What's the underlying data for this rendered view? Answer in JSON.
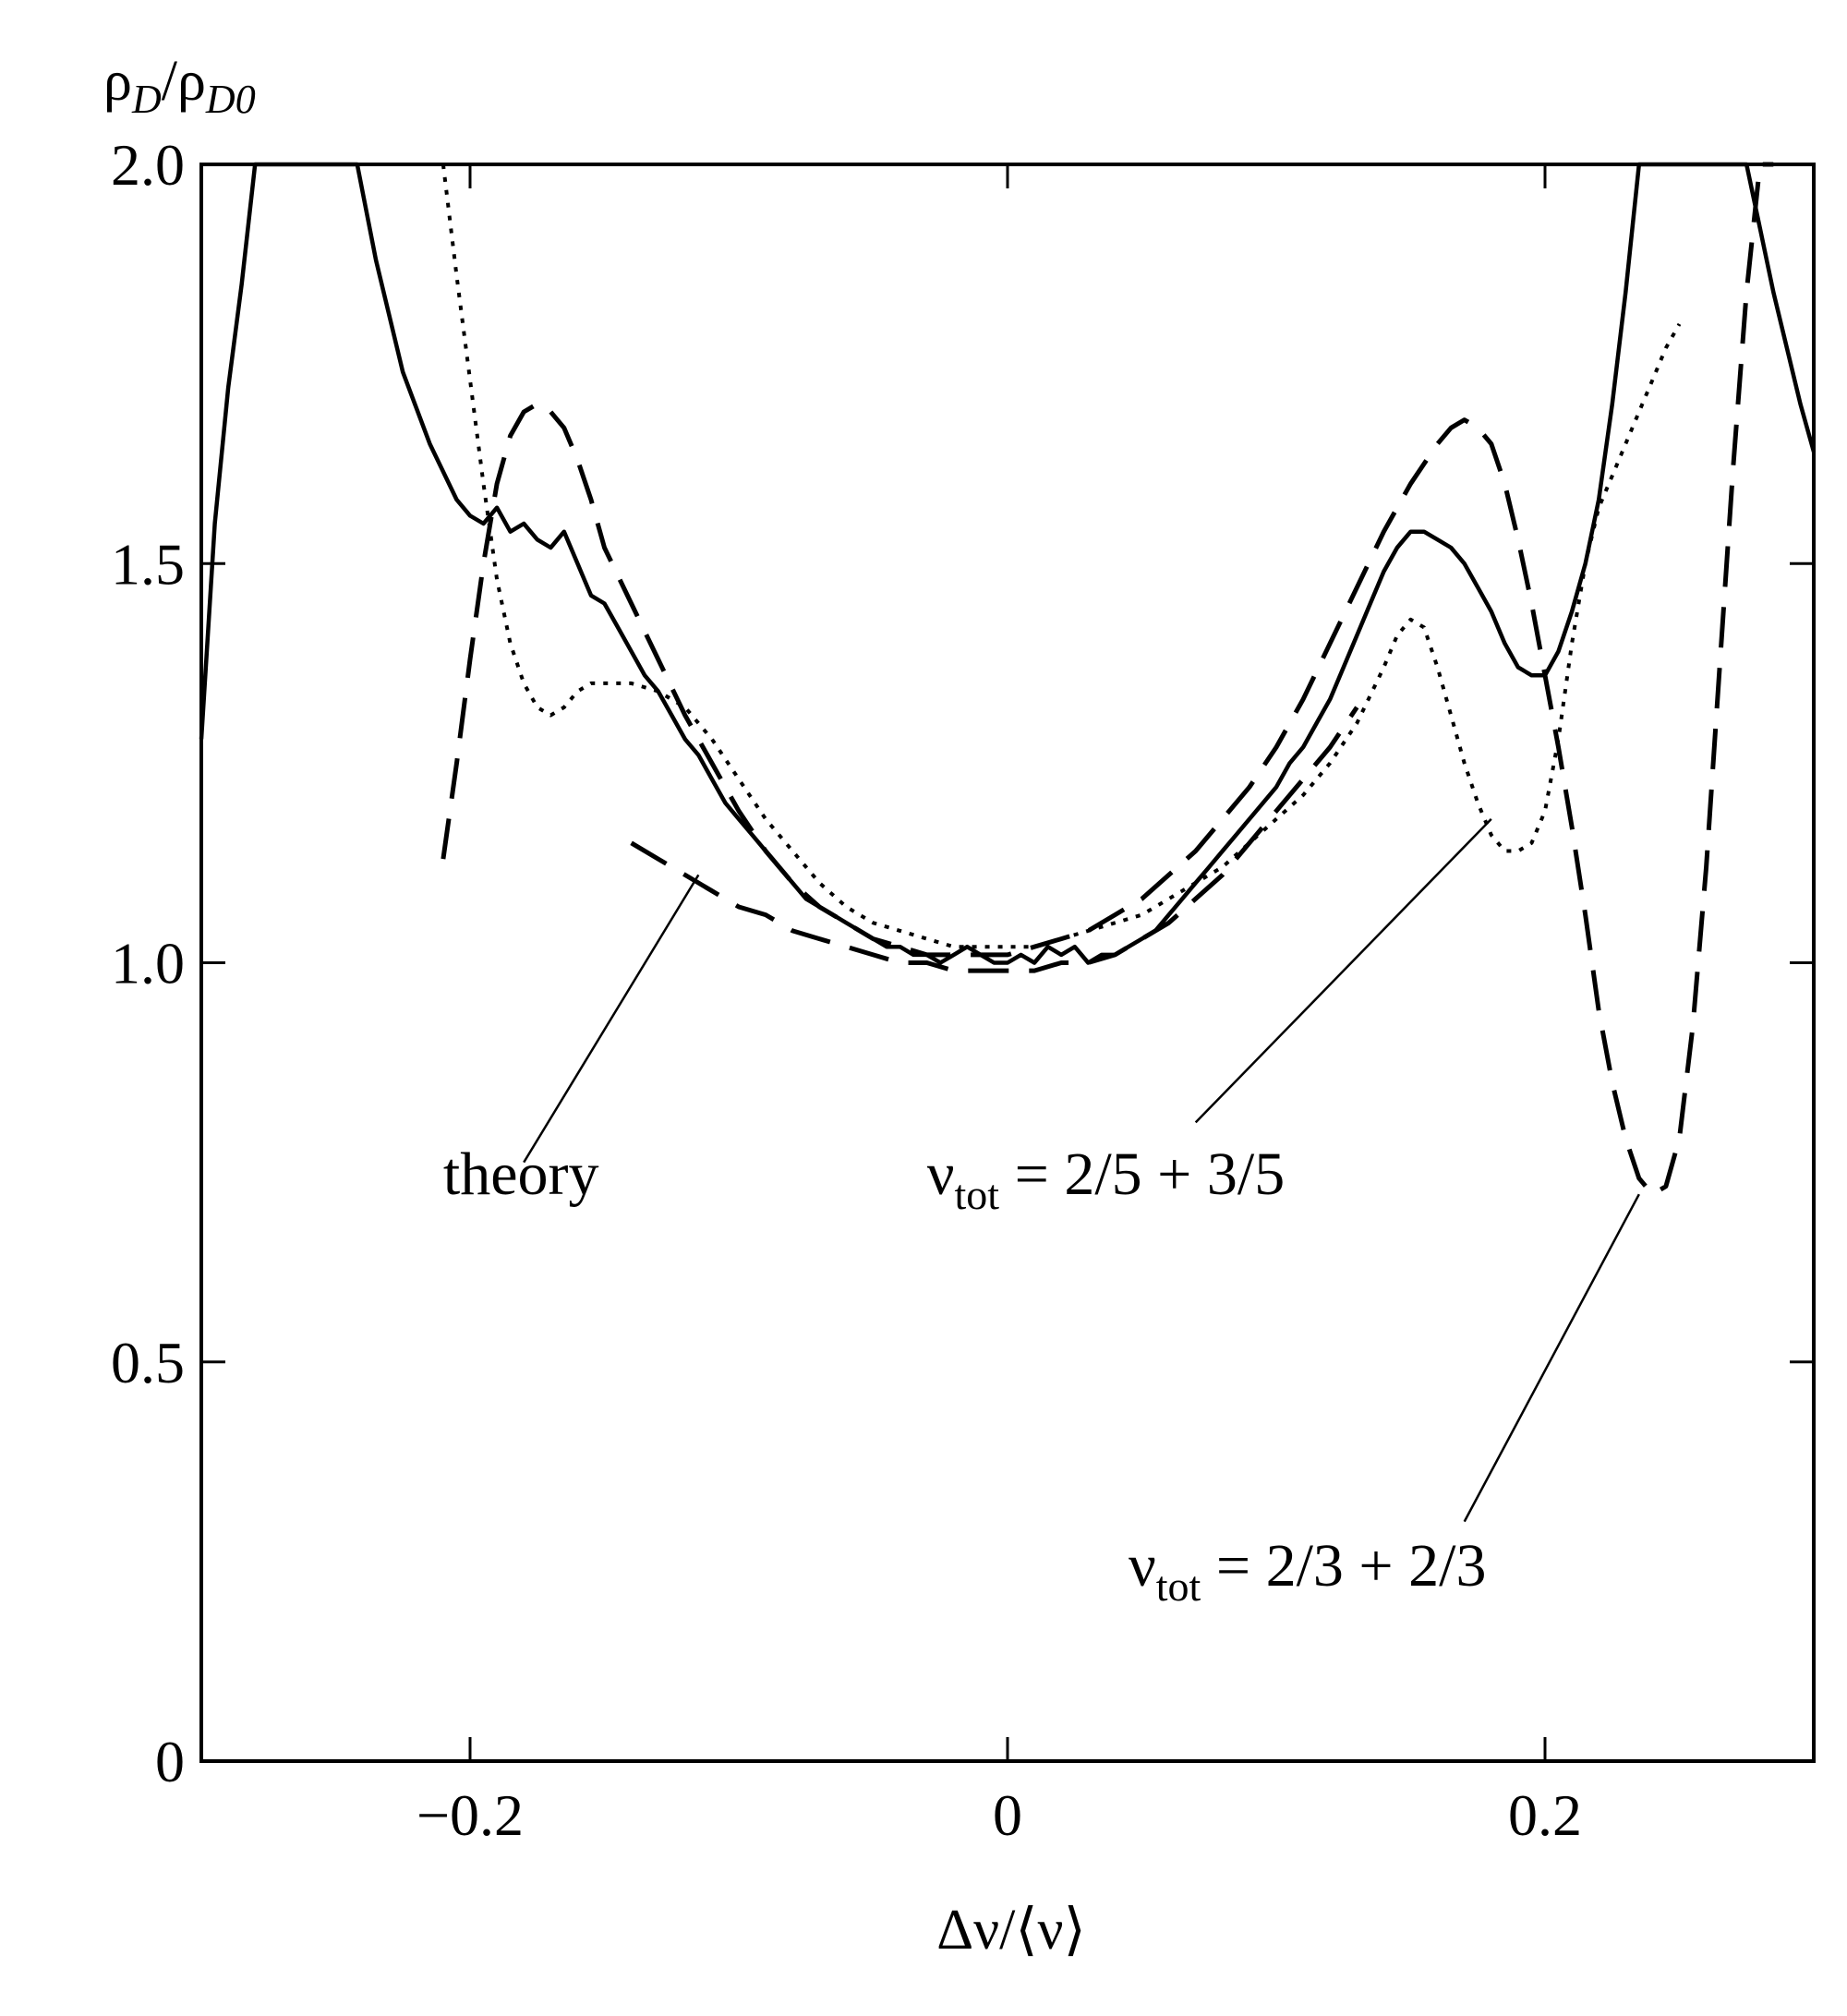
{
  "chart_data": {
    "type": "line",
    "title": "",
    "ylabel": {
      "base": "ρ",
      "sub": "D",
      "sep": "/",
      "base2": "ρ",
      "sub2": "D0"
    },
    "xlabel": "Δν/⟨ν⟩",
    "xlim": [
      -0.3,
      0.3
    ],
    "ylim": [
      0,
      2.0
    ],
    "x_ticks": [
      -0.2,
      0,
      0.2
    ],
    "x_tick_labels": [
      "−0.2",
      "0",
      "0.2"
    ],
    "y_ticks": [
      0,
      0.5,
      1.0,
      1.5,
      2.0
    ],
    "y_tick_labels": [
      "0",
      "0.5",
      "1.0",
      "1.5",
      "2.0"
    ],
    "grid": false,
    "series": [
      {
        "style": "solid",
        "x": [
          -0.3,
          -0.295,
          -0.29,
          -0.285,
          -0.28,
          -0.242,
          -0.235,
          -0.225,
          -0.215,
          -0.205,
          -0.2,
          -0.195,
          -0.19,
          -0.185,
          -0.18,
          -0.175,
          -0.17,
          -0.165,
          -0.16,
          -0.155,
          -0.15,
          -0.145,
          -0.14,
          -0.135,
          -0.13,
          -0.125,
          -0.12,
          -0.115,
          -0.11,
          -0.105,
          -0.1,
          -0.095,
          -0.09,
          -0.085,
          -0.08,
          -0.075,
          -0.07,
          -0.065,
          -0.06,
          -0.055,
          -0.05,
          -0.045,
          -0.04,
          -0.035,
          -0.03,
          -0.025,
          -0.02,
          -0.015,
          -0.01,
          -0.005,
          0.0,
          0.005,
          0.01,
          0.015,
          0.02,
          0.025,
          0.03,
          0.035,
          0.04,
          0.045,
          0.05,
          0.055,
          0.06,
          0.065,
          0.07,
          0.075,
          0.08,
          0.085,
          0.09,
          0.095,
          0.1,
          0.105,
          0.11,
          0.115,
          0.12,
          0.125,
          0.13,
          0.135,
          0.14,
          0.145,
          0.15,
          0.155,
          0.16,
          0.165,
          0.17,
          0.175,
          0.18,
          0.185,
          0.19,
          0.195,
          0.2,
          0.205,
          0.21,
          0.215,
          0.22,
          0.225,
          0.23,
          0.235,
          0.24,
          0.245,
          0.275,
          0.28,
          0.285,
          0.29,
          0.295,
          0.3
        ],
        "y": [
          1.28,
          1.55,
          1.72,
          1.85,
          2.0,
          2.0,
          1.88,
          1.74,
          1.65,
          1.58,
          1.56,
          1.55,
          1.57,
          1.54,
          1.55,
          1.53,
          1.52,
          1.54,
          1.5,
          1.46,
          1.45,
          1.42,
          1.39,
          1.36,
          1.34,
          1.31,
          1.28,
          1.26,
          1.23,
          1.2,
          1.18,
          1.16,
          1.14,
          1.12,
          1.1,
          1.08,
          1.07,
          1.06,
          1.05,
          1.04,
          1.03,
          1.02,
          1.02,
          1.01,
          1.01,
          1.0,
          1.01,
          1.02,
          1.01,
          1.0,
          1.0,
          1.01,
          1.0,
          1.02,
          1.01,
          1.02,
          1.0,
          1.01,
          1.01,
          1.02,
          1.03,
          1.04,
          1.06,
          1.08,
          1.1,
          1.12,
          1.14,
          1.16,
          1.18,
          1.2,
          1.22,
          1.25,
          1.27,
          1.3,
          1.33,
          1.37,
          1.41,
          1.45,
          1.49,
          1.52,
          1.54,
          1.54,
          1.53,
          1.52,
          1.5,
          1.47,
          1.44,
          1.4,
          1.37,
          1.36,
          1.36,
          1.39,
          1.44,
          1.5,
          1.58,
          1.7,
          1.84,
          2.0,
          2.0,
          2.0,
          2.0,
          1.92,
          1.84,
          1.77,
          1.7,
          1.64
        ]
      },
      {
        "style": "dotted",
        "x": [
          -0.21,
          -0.205,
          -0.2,
          -0.195,
          -0.19,
          -0.185,
          -0.18,
          -0.175,
          -0.17,
          -0.165,
          -0.16,
          -0.155,
          -0.15,
          -0.14,
          -0.13,
          -0.12,
          -0.11,
          -0.1,
          -0.09,
          -0.08,
          -0.07,
          -0.06,
          -0.05,
          -0.04,
          -0.03,
          -0.02,
          -0.01,
          0.0,
          0.01,
          0.02,
          0.03,
          0.04,
          0.05,
          0.06,
          0.07,
          0.08,
          0.09,
          0.1,
          0.11,
          0.12,
          0.13,
          0.14,
          0.145,
          0.15,
          0.155,
          0.16,
          0.165,
          0.17,
          0.175,
          0.18,
          0.185,
          0.19,
          0.195,
          0.2,
          0.205,
          0.21,
          0.215,
          0.22,
          0.225,
          0.23,
          0.235,
          0.24,
          0.245,
          0.25
        ],
        "y": [
          2.0,
          1.86,
          1.73,
          1.6,
          1.48,
          1.4,
          1.35,
          1.32,
          1.31,
          1.32,
          1.34,
          1.35,
          1.35,
          1.35,
          1.34,
          1.32,
          1.28,
          1.23,
          1.18,
          1.14,
          1.1,
          1.07,
          1.05,
          1.04,
          1.03,
          1.02,
          1.02,
          1.02,
          1.02,
          1.03,
          1.04,
          1.05,
          1.06,
          1.08,
          1.1,
          1.12,
          1.15,
          1.18,
          1.21,
          1.25,
          1.3,
          1.37,
          1.41,
          1.43,
          1.42,
          1.37,
          1.31,
          1.25,
          1.2,
          1.16,
          1.14,
          1.14,
          1.15,
          1.19,
          1.28,
          1.4,
          1.5,
          1.57,
          1.61,
          1.65,
          1.69,
          1.73,
          1.77,
          1.8
        ]
      },
      {
        "style": "dashed",
        "name": "νtot = 2/3 + 2/3",
        "x": [
          -0.21,
          -0.205,
          -0.2,
          -0.195,
          -0.19,
          -0.185,
          -0.18,
          -0.175,
          -0.17,
          -0.165,
          -0.16,
          -0.155,
          -0.15,
          -0.14,
          -0.13,
          -0.12,
          -0.11,
          -0.1,
          -0.09,
          -0.08,
          -0.07,
          -0.06,
          -0.05,
          -0.04,
          -0.03,
          -0.02,
          -0.01,
          0.0,
          0.01,
          0.02,
          0.03,
          0.04,
          0.05,
          0.06,
          0.07,
          0.08,
          0.09,
          0.1,
          0.11,
          0.12,
          0.13,
          0.14,
          0.15,
          0.16,
          0.165,
          0.17,
          0.175,
          0.18,
          0.185,
          0.19,
          0.195,
          0.2,
          0.205,
          0.21,
          0.215,
          0.22,
          0.225,
          0.23,
          0.235,
          0.24,
          0.245,
          0.25,
          0.255,
          0.26,
          0.265,
          0.27,
          0.275,
          0.28,
          0.285
        ],
        "y": [
          1.13,
          1.25,
          1.38,
          1.5,
          1.6,
          1.66,
          1.69,
          1.7,
          1.69,
          1.67,
          1.63,
          1.58,
          1.52,
          1.45,
          1.38,
          1.31,
          1.25,
          1.19,
          1.14,
          1.1,
          1.07,
          1.05,
          1.03,
          1.02,
          1.01,
          1.01,
          1.01,
          1.01,
          1.02,
          1.03,
          1.04,
          1.06,
          1.08,
          1.11,
          1.14,
          1.18,
          1.22,
          1.27,
          1.33,
          1.4,
          1.47,
          1.54,
          1.6,
          1.65,
          1.67,
          1.68,
          1.67,
          1.65,
          1.6,
          1.53,
          1.45,
          1.36,
          1.27,
          1.17,
          1.06,
          0.94,
          0.85,
          0.78,
          0.73,
          0.71,
          0.72,
          0.78,
          0.92,
          1.12,
          1.37,
          1.62,
          1.84,
          2.0,
          2.0
        ]
      },
      {
        "style": "dashed",
        "name": "theory",
        "x": [
          -0.14,
          -0.13,
          -0.12,
          -0.11,
          -0.1,
          -0.09,
          -0.08,
          -0.07,
          -0.06,
          -0.05,
          -0.04,
          -0.03,
          -0.02,
          -0.01,
          0.0,
          0.01,
          0.02,
          0.03,
          0.04,
          0.05,
          0.06,
          0.07,
          0.08,
          0.09,
          0.1,
          0.11,
          0.12,
          0.13
        ],
        "y": [
          1.15,
          1.13,
          1.11,
          1.09,
          1.07,
          1.06,
          1.04,
          1.03,
          1.02,
          1.01,
          1.0,
          1.0,
          0.99,
          0.99,
          0.99,
          0.99,
          1.0,
          1.0,
          1.01,
          1.03,
          1.05,
          1.08,
          1.11,
          1.15,
          1.19,
          1.23,
          1.27,
          1.32
        ]
      }
    ],
    "annotations": [
      {
        "text": "theory",
        "text_x": -0.21,
        "text_y": 0.71,
        "line_from": [
          -0.18,
          0.75
        ],
        "line_to": [
          -0.115,
          1.11
        ]
      },
      {
        "base": "ν",
        "sub": "tot",
        "rest": " = 2/5 + 3/5",
        "text_x": -0.03,
        "text_y": 0.71,
        "line_from": [
          0.07,
          0.8
        ],
        "line_to": [
          0.18,
          1.18
        ]
      },
      {
        "base": "ν",
        "sub": "tot",
        "rest": " = 2/3 + 2/3",
        "text_x": 0.045,
        "text_y": 0.22,
        "line_from": [
          0.17,
          0.3
        ],
        "line_to": [
          0.235,
          0.71
        ]
      }
    ]
  }
}
